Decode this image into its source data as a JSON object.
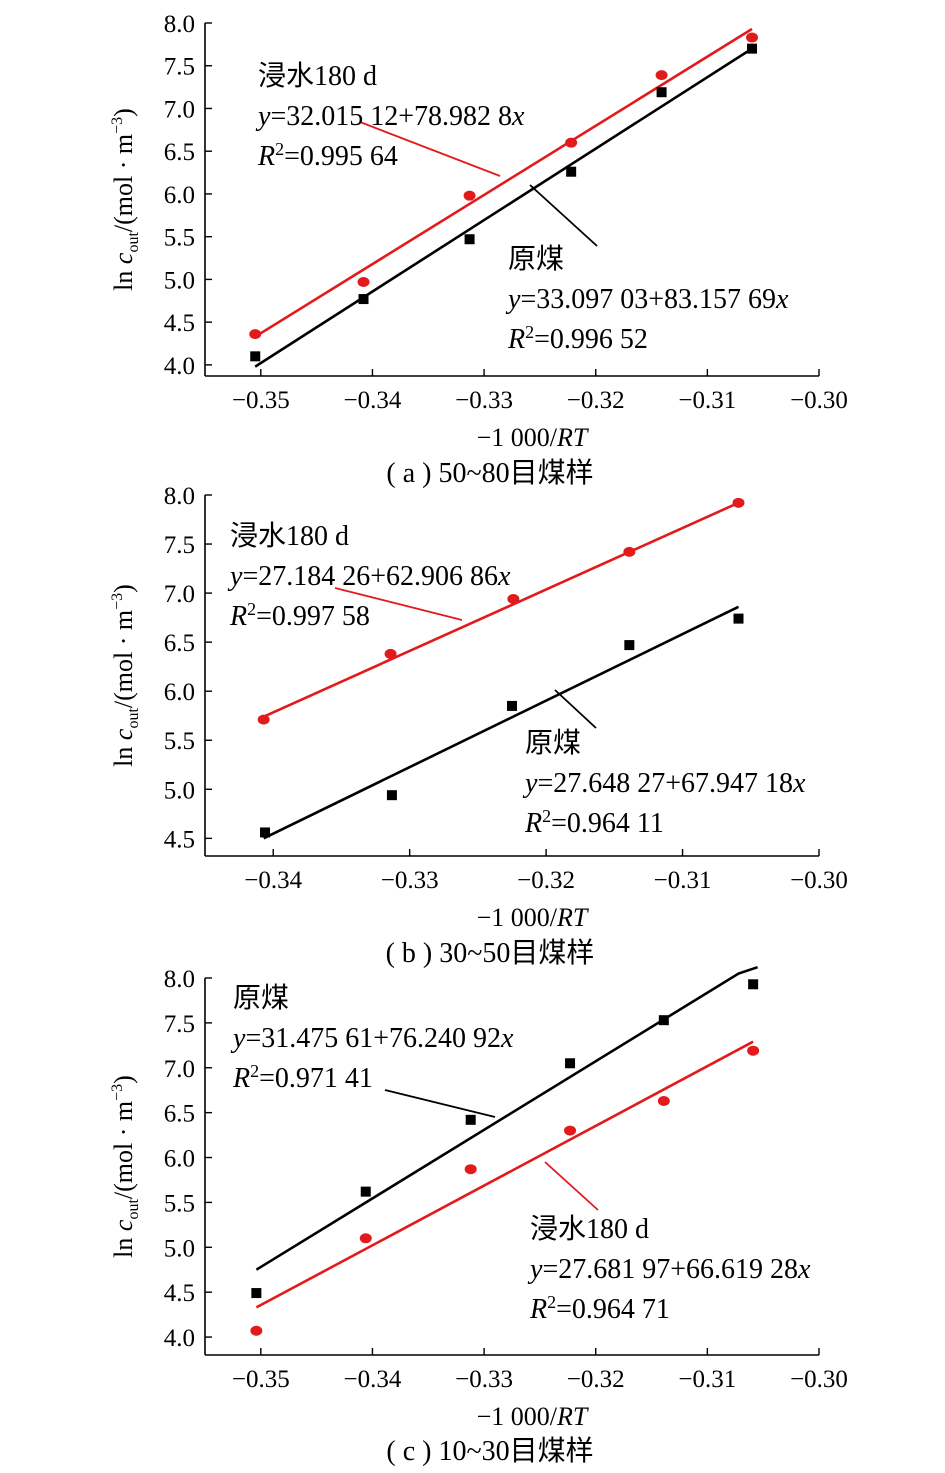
{
  "colors": {
    "raw": "#000000",
    "soaked": "#e31a1c"
  },
  "chart_data": [
    {
      "type": "scatter",
      "caption": "( a ) 50~80目煤样",
      "xlabel_prefix": "−1 000/",
      "xlabel_var": "RT",
      "ylabel_prefix": "ln ",
      "ylabel_var": "c",
      "ylabel_sub": "out",
      "ylabel_unit": "/(mol · m",
      "ylabel_sup": "−3",
      "ylabel_close": ")",
      "xlim": [
        -0.355,
        -0.3
      ],
      "ylim": [
        3.87,
        8.0
      ],
      "xticks": [
        -0.35,
        -0.34,
        -0.33,
        -0.32,
        -0.31,
        -0.3
      ],
      "xtick_labels": [
        "−0.35",
        "−0.34",
        "−0.33",
        "−0.32",
        "−0.31",
        "−0.30"
      ],
      "yticks": [
        4.0,
        4.5,
        5.0,
        5.5,
        6.0,
        6.5,
        7.0,
        7.5,
        8.0
      ],
      "ytick_labels": [
        "4.0",
        "4.5",
        "5.0",
        "5.5",
        "6.0",
        "6.5",
        "7.0",
        "7.5",
        "8.0"
      ],
      "series": [
        {
          "name": "浸水180 d",
          "key": "soaked",
          "x": [
            -0.3505,
            -0.3408,
            -0.3313,
            -0.3222,
            -0.3141,
            -0.306
          ],
          "y": [
            4.36,
            4.97,
            5.98,
            6.6,
            7.39,
            7.83
          ],
          "fit": {
            "x": [
              -0.3505,
              -0.306
            ],
            "y": [
              4.33,
              7.93
            ]
          },
          "equation_y": "y",
          "equation_rest": "=32.015 12+78.982 8",
          "equation_x": "x",
          "r2_label": "R",
          "r2_sup": "2",
          "r2_value": "=0.995 64"
        },
        {
          "name": "原煤",
          "key": "raw",
          "x": [
            -0.3505,
            -0.3408,
            -0.3313,
            -0.3222,
            -0.3141,
            -0.306
          ],
          "y": [
            4.1,
            4.77,
            5.47,
            6.26,
            7.19,
            7.7
          ],
          "fit": {
            "x": [
              -0.3505,
              -0.306
            ],
            "y": [
              3.98,
              7.7
            ]
          },
          "equation_y": "y",
          "equation_rest": "=33.097 03+83.157 69",
          "equation_x": "x",
          "r2_label": "R",
          "r2_sup": "2",
          "r2_value": "=0.996 52"
        }
      ]
    },
    {
      "type": "scatter",
      "caption": "( b ) 30~50目煤样",
      "xlabel_prefix": "−1 000/",
      "xlabel_var": "RT",
      "ylabel_prefix": "ln ",
      "ylabel_var": "c",
      "ylabel_sub": "out",
      "ylabel_unit": "/(mol · m",
      "ylabel_sup": "−3",
      "ylabel_close": ")",
      "xlim": [
        -0.345,
        -0.3
      ],
      "ylim": [
        4.32,
        8.0
      ],
      "xticks": [
        -0.34,
        -0.33,
        -0.32,
        -0.31,
        -0.3
      ],
      "xtick_labels": [
        "−0.34",
        "−0.33",
        "−0.32",
        "−0.31",
        "−0.30"
      ],
      "yticks": [
        4.5,
        5.0,
        5.5,
        6.0,
        6.5,
        7.0,
        7.5,
        8.0
      ],
      "ytick_labels": [
        "4.5",
        "5.0",
        "5.5",
        "6.0",
        "6.5",
        "7.0",
        "7.5",
        "8.0"
      ],
      "series": [
        {
          "name": "浸水180 d",
          "key": "soaked",
          "x": [
            -0.3407,
            -0.3314,
            -0.3224,
            -0.3139,
            -0.3059
          ],
          "y": [
            5.71,
            6.38,
            6.94,
            7.42,
            7.92
          ],
          "fit": {
            "x": [
              -0.3407,
              -0.3059
            ],
            "y": [
              5.74,
              7.92
            ]
          },
          "equation_y": "y",
          "equation_rest": "=27.184 26+62.906 86",
          "equation_x": "x",
          "r2_label": "R",
          "r2_sup": "2",
          "r2_value": "=0.997 58"
        },
        {
          "name": "原煤",
          "key": "raw",
          "x": [
            -0.3406,
            -0.3313,
            -0.3225,
            -0.3139,
            -0.3059
          ],
          "y": [
            4.56,
            4.94,
            5.85,
            6.47,
            6.74
          ],
          "fit": {
            "x": [
              -0.3407,
              -0.3059
            ],
            "y": [
              4.5,
              6.86
            ]
          },
          "equation_y": "y",
          "equation_rest": "=27.648 27+67.947 18",
          "equation_x": "x",
          "r2_label": "R",
          "r2_sup": "2",
          "r2_value": "=0.964 11"
        }
      ]
    },
    {
      "type": "scatter",
      "caption": "( c ) 10~30目煤样",
      "xlabel_prefix": "−1 000/",
      "xlabel_var": "RT",
      "ylabel_prefix": "ln ",
      "ylabel_var": "c",
      "ylabel_sub": "out",
      "ylabel_unit": "/(mol · m",
      "ylabel_sup": "−3",
      "ylabel_close": ")",
      "xlim": [
        -0.355,
        -0.3
      ],
      "ylim": [
        3.8,
        8.0
      ],
      "xticks": [
        -0.35,
        -0.34,
        -0.33,
        -0.32,
        -0.31,
        -0.3
      ],
      "xtick_labels": [
        "−0.35",
        "−0.34",
        "−0.33",
        "−0.32",
        "−0.31",
        "−0.30"
      ],
      "yticks": [
        4.0,
        4.5,
        5.0,
        5.5,
        6.0,
        6.5,
        7.0,
        7.5,
        8.0
      ],
      "ytick_labels": [
        "4.0",
        "4.5",
        "5.0",
        "5.5",
        "6.0",
        "6.5",
        "7.0",
        "7.5",
        "8.0"
      ],
      "series": [
        {
          "name": "原煤",
          "key": "raw",
          "x": [
            -0.3504,
            -0.3406,
            -0.3312,
            -0.3223,
            -0.3139,
            -0.3059
          ],
          "y": [
            4.49,
            5.62,
            6.42,
            7.05,
            7.53,
            7.93
          ],
          "fit": {
            "x": [
              -0.3504,
              -0.3072,
              -0.3055
            ],
            "y": [
              4.75,
              8.05,
              8.12
            ]
          },
          "equation_y": "y",
          "equation_rest": "=31.475 61+76.240 92",
          "equation_x": "x",
          "r2_label": "R",
          "r2_sup": "2",
          "r2_value": "=0.971 41"
        },
        {
          "name": "浸水180 d",
          "key": "soaked",
          "x": [
            -0.3504,
            -0.3406,
            -0.3312,
            -0.3223,
            -0.3139,
            -0.3059
          ],
          "y": [
            4.07,
            5.1,
            5.87,
            6.3,
            6.63,
            7.19
          ],
          "fit": {
            "x": [
              -0.3504,
              -0.3059
            ],
            "y": [
              4.33,
              7.29
            ]
          },
          "equation_y": "y",
          "equation_rest": "=27.681 97+66.619 28",
          "equation_x": "x",
          "r2_label": "R",
          "r2_sup": "2",
          "r2_value": "=0.964 71"
        }
      ]
    }
  ]
}
